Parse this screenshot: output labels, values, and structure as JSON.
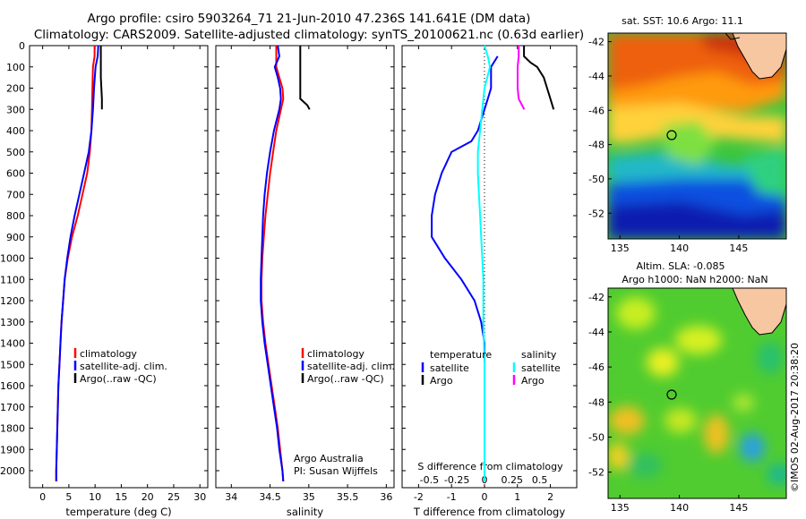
{
  "header": {
    "line1": "Argo profile: csiro 5903264_71 21-Jun-2010 47.236S 141.641E (DM data)",
    "line2": "Climatology: CARS2009. Satellite-adjusted climatology: synTS_20100621.nc (0.63d earlier)"
  },
  "colors": {
    "climatology": "#ff0000",
    "satellite": "#0000ff",
    "argo": "#000000",
    "salinity_satellite": "#00ffff",
    "salinity_argo": "#ff00ff"
  },
  "chart_data": [
    {
      "type": "line",
      "id": "temperature",
      "xlabel": "temperature (deg C)",
      "ylabel": "",
      "xlim": [
        -2.5,
        31.5
      ],
      "ylim": [
        2080,
        0
      ],
      "xticks": [
        "0",
        "5",
        "10",
        "15",
        "20",
        "25",
        "30"
      ],
      "xtick_values": [
        0,
        5,
        10,
        15,
        20,
        25,
        30
      ],
      "yticks": [
        "0",
        "100",
        "200",
        "300",
        "400",
        "500",
        "600",
        "700",
        "800",
        "900",
        "1000",
        "1100",
        "1200",
        "1300",
        "1400",
        "1500",
        "1600",
        "1700",
        "1800",
        "1900",
        "2000"
      ],
      "ytick_values": [
        0,
        100,
        200,
        300,
        400,
        500,
        600,
        700,
        800,
        900,
        1000,
        1100,
        1200,
        1300,
        1400,
        1500,
        1600,
        1700,
        1800,
        1900,
        2000
      ],
      "legend": [
        "climatology",
        "satellite-adj. clim.",
        "Argo(..raw -QC)"
      ],
      "legend_position": "lower-center",
      "series": [
        {
          "name": "climatology",
          "color": "#ff0000",
          "points": [
            [
              9.9,
              0
            ],
            [
              9.9,
              50
            ],
            [
              9.6,
              100
            ],
            [
              9.5,
              200
            ],
            [
              9.4,
              300
            ],
            [
              9.3,
              400
            ],
            [
              9.0,
              500
            ],
            [
              8.5,
              600
            ],
            [
              7.6,
              700
            ],
            [
              6.7,
              800
            ],
            [
              5.6,
              900
            ],
            [
              4.8,
              1000
            ],
            [
              4.2,
              1100
            ],
            [
              3.9,
              1200
            ],
            [
              3.6,
              1300
            ],
            [
              3.4,
              1400
            ],
            [
              3.2,
              1500
            ],
            [
              3.0,
              1600
            ],
            [
              2.9,
              1700
            ],
            [
              2.8,
              1800
            ],
            [
              2.7,
              1900
            ],
            [
              2.6,
              2000
            ],
            [
              2.6,
              2050
            ]
          ]
        },
        {
          "name": "satellite-adj. clim.",
          "color": "#0000ff",
          "points": [
            [
              10.6,
              0
            ],
            [
              10.5,
              50
            ],
            [
              10.1,
              100
            ],
            [
              9.8,
              200
            ],
            [
              9.6,
              300
            ],
            [
              9.3,
              400
            ],
            [
              8.8,
              500
            ],
            [
              7.9,
              600
            ],
            [
              7.0,
              700
            ],
            [
              6.1,
              800
            ],
            [
              5.3,
              900
            ],
            [
              4.7,
              1000
            ],
            [
              4.2,
              1100
            ],
            [
              3.9,
              1200
            ],
            [
              3.6,
              1300
            ],
            [
              3.4,
              1400
            ],
            [
              3.2,
              1500
            ],
            [
              3.0,
              1600
            ],
            [
              2.9,
              1700
            ],
            [
              2.8,
              1800
            ],
            [
              2.7,
              1900
            ],
            [
              2.6,
              2000
            ],
            [
              2.6,
              2050
            ]
          ]
        },
        {
          "name": "Argo(..raw -QC)",
          "color": "#000000",
          "points": [
            [
              11.1,
              0
            ],
            [
              11.1,
              50
            ],
            [
              11.1,
              100
            ],
            [
              11.1,
              150
            ],
            [
              11.2,
              200
            ],
            [
              11.3,
              250
            ],
            [
              11.3,
              300
            ]
          ]
        }
      ]
    },
    {
      "type": "line",
      "id": "salinity",
      "xlabel": "salinity",
      "ylabel": "",
      "xlim": [
        33.8,
        36.1
      ],
      "ylim": [
        2080,
        0
      ],
      "xticks": [
        "34",
        "34.5",
        "35",
        "35.5",
        "36"
      ],
      "xtick_values": [
        34,
        34.5,
        35,
        35.5,
        36
      ],
      "legend": [
        "climatology",
        "satellite-adj. clim.",
        "Argo(..raw -QC)"
      ],
      "legend_position": "lower-center",
      "annotation": [
        "Argo Australia",
        "PI: Susan Wijffels"
      ],
      "series": [
        {
          "name": "climatology",
          "color": "#ff0000",
          "points": [
            [
              34.58,
              0
            ],
            [
              34.58,
              50
            ],
            [
              34.58,
              100
            ],
            [
              34.62,
              150
            ],
            [
              34.66,
              200
            ],
            [
              34.67,
              250
            ],
            [
              34.64,
              300
            ],
            [
              34.58,
              400
            ],
            [
              34.54,
              500
            ],
            [
              34.5,
              600
            ],
            [
              34.47,
              700
            ],
            [
              34.44,
              800
            ],
            [
              34.42,
              900
            ],
            [
              34.4,
              1000
            ],
            [
              34.39,
              1100
            ],
            [
              34.39,
              1200
            ],
            [
              34.41,
              1300
            ],
            [
              34.44,
              1400
            ],
            [
              34.48,
              1500
            ],
            [
              34.52,
              1600
            ],
            [
              34.56,
              1700
            ],
            [
              34.6,
              1800
            ],
            [
              34.63,
              1900
            ],
            [
              34.66,
              2000
            ],
            [
              34.67,
              2050
            ]
          ]
        },
        {
          "name": "satellite-adj. clim.",
          "color": "#0000ff",
          "points": [
            [
              34.6,
              0
            ],
            [
              34.62,
              50
            ],
            [
              34.56,
              100
            ],
            [
              34.6,
              150
            ],
            [
              34.63,
              200
            ],
            [
              34.64,
              250
            ],
            [
              34.62,
              300
            ],
            [
              34.55,
              400
            ],
            [
              34.5,
              500
            ],
            [
              34.46,
              600
            ],
            [
              34.43,
              700
            ],
            [
              34.41,
              800
            ],
            [
              34.4,
              900
            ],
            [
              34.39,
              1000
            ],
            [
              34.38,
              1100
            ],
            [
              34.38,
              1200
            ],
            [
              34.4,
              1300
            ],
            [
              34.43,
              1400
            ],
            [
              34.47,
              1500
            ],
            [
              34.51,
              1600
            ],
            [
              34.55,
              1700
            ],
            [
              34.59,
              1800
            ],
            [
              34.62,
              1900
            ],
            [
              34.66,
              2000
            ],
            [
              34.67,
              2050
            ]
          ]
        },
        {
          "name": "Argo(..raw -QC)",
          "color": "#000000",
          "points": [
            [
              34.89,
              0
            ],
            [
              34.89,
              50
            ],
            [
              34.89,
              100
            ],
            [
              34.89,
              150
            ],
            [
              34.89,
              200
            ],
            [
              34.89,
              250
            ],
            [
              34.98,
              280
            ],
            [
              35.01,
              300
            ]
          ]
        }
      ]
    },
    {
      "type": "line",
      "id": "differences",
      "xlabel": "T difference from climatology",
      "title_bottom": "S difference from climatology",
      "xlim": [
        -2.5,
        2.8
      ],
      "ylim": [
        2080,
        0
      ],
      "xticks": [
        "-2",
        "-1",
        "0",
        "1",
        "2"
      ],
      "xtick_values": [
        -2,
        -1,
        0,
        1,
        2
      ],
      "s_xticks": [
        "-0.5",
        "-0.25",
        "0",
        "0.25",
        "0.5"
      ],
      "s_xtick_values": [
        -0.5,
        -0.25,
        0,
        0.25,
        0.5
      ],
      "zero_line": "dotted",
      "legend_temperature": {
        "title": "temperature",
        "items": [
          "satellite",
          "Argo"
        ]
      },
      "legend_salinity": {
        "title": "salinity",
        "items": [
          "satellite",
          "Argo"
        ]
      },
      "series": [
        {
          "name": "temperature satellite",
          "color": "#0000ff",
          "points": [
            [
              0.4,
              50
            ],
            [
              0.2,
              100
            ],
            [
              0.2,
              150
            ],
            [
              0.2,
              200
            ],
            [
              0.1,
              250
            ],
            [
              0.0,
              300
            ],
            [
              -0.2,
              400
            ],
            [
              -0.4,
              450
            ],
            [
              -1.0,
              500
            ],
            [
              -1.3,
              600
            ],
            [
              -1.5,
              700
            ],
            [
              -1.6,
              800
            ],
            [
              -1.6,
              900
            ],
            [
              -1.2,
              1000
            ],
            [
              -0.7,
              1100
            ],
            [
              -0.3,
              1200
            ],
            [
              -0.1,
              1300
            ],
            [
              0.0,
              1400
            ],
            [
              0.0,
              1500
            ],
            [
              0.0,
              1700
            ],
            [
              0.0,
              1900
            ],
            [
              0.0,
              2050
            ]
          ]
        },
        {
          "name": "temperature Argo",
          "color": "#000000",
          "points": [
            [
              1.2,
              0
            ],
            [
              1.2,
              50
            ],
            [
              1.4,
              80
            ],
            [
              1.6,
              100
            ],
            [
              1.8,
              150
            ],
            [
              1.9,
              200
            ],
            [
              2.0,
              250
            ],
            [
              2.1,
              300
            ]
          ]
        },
        {
          "name": "salinity satellite",
          "color": "#00ffff",
          "points": [
            [
              0.0,
              0
            ],
            [
              0.03,
              50
            ],
            [
              0.05,
              100
            ],
            [
              0.0,
              200
            ],
            [
              -0.02,
              300
            ],
            [
              -0.04,
              400
            ],
            [
              -0.06,
              500
            ],
            [
              -0.06,
              600
            ],
            [
              -0.05,
              700
            ],
            [
              -0.04,
              800
            ],
            [
              -0.03,
              900
            ],
            [
              -0.02,
              1000
            ],
            [
              -0.01,
              1100
            ],
            [
              -0.01,
              1300
            ],
            [
              0.0,
              1500
            ],
            [
              0.0,
              1700
            ],
            [
              0.0,
              2050
            ]
          ]
        },
        {
          "name": "salinity Argo",
          "color": "#ff00ff",
          "points": [
            [
              0.31,
              0
            ],
            [
              0.31,
              50
            ],
            [
              0.3,
              100
            ],
            [
              0.3,
              150
            ],
            [
              0.3,
              200
            ],
            [
              0.31,
              250
            ],
            [
              0.36,
              300
            ]
          ]
        }
      ]
    },
    {
      "type": "heatmap",
      "id": "sst-map",
      "title": "sat. SST: 10.6  Argo: 11.1",
      "xlim": [
        134,
        149
      ],
      "ylim": [
        -53.5,
        -41.5
      ],
      "xticks": [
        "135",
        "140",
        "145"
      ],
      "xtick_values": [
        135,
        140,
        145
      ],
      "yticks": [
        "-42",
        "-44",
        "-46",
        "-48",
        "-50",
        "-52"
      ],
      "ytick_values": [
        -42,
        -44,
        -46,
        -48,
        -50,
        -52
      ],
      "marker": {
        "lon": 141.641,
        "lat": -47.236
      }
    },
    {
      "type": "heatmap",
      "id": "sla-map",
      "title": "Altim. SLA: -0.085",
      "subtitle": "Argo h1000: NaN h2000: NaN",
      "xlim": [
        134,
        149
      ],
      "ylim": [
        -53.5,
        -41.5
      ],
      "xticks": [
        "135",
        "140",
        "145"
      ],
      "xtick_values": [
        135,
        140,
        145
      ],
      "yticks": [
        "-42",
        "-44",
        "-46",
        "-48",
        "-50",
        "-52"
      ],
      "ytick_values": [
        -42,
        -44,
        -46,
        -48,
        -50,
        -52
      ],
      "marker": {
        "lon": 141.641,
        "lat": -47.236
      }
    }
  ],
  "footer": {
    "stamp": "©IMOS 02-Aug-2017 20:38:20"
  }
}
